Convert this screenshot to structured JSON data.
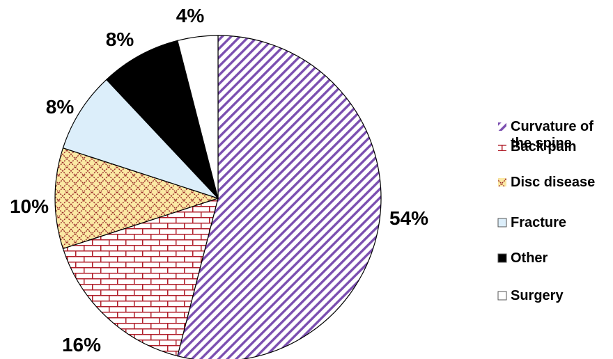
{
  "chart_data": {
    "type": "pie",
    "title": "",
    "categories": [
      "Curvature of the spine",
      "Back pain",
      "Disc disease",
      "Fracture",
      "Other",
      "Surgery"
    ],
    "values": [
      54,
      16,
      10,
      8,
      8,
      4
    ],
    "data_labels": [
      "54%",
      "16%",
      "10%",
      "8%",
      "8%",
      "4%"
    ],
    "legend": {
      "placement": "right",
      "entries": [
        {
          "lines": [
            "Curvature of",
            "the spine"
          ]
        },
        {
          "lines": [
            "Back pain"
          ]
        },
        {
          "lines": [
            "Disc disease"
          ]
        },
        {
          "lines": [
            "Fracture"
          ]
        },
        {
          "lines": [
            "Other"
          ]
        },
        {
          "lines": [
            "Surgery"
          ]
        }
      ]
    },
    "start_angle_deg": 0,
    "direction": "clockwise",
    "slice_styles": [
      {
        "pattern": "diagonal-stripes",
        "color": "#7b4fb0"
      },
      {
        "pattern": "bricks",
        "color": "#b01e2a"
      },
      {
        "pattern": "crosshatch",
        "color": "#9a2a2a",
        "fill": "#fbe9a4"
      },
      {
        "pattern": "solid",
        "color": "#dceefa"
      },
      {
        "pattern": "solid",
        "color": "#000000"
      },
      {
        "pattern": "solid",
        "color": "#ffffff"
      }
    ]
  }
}
